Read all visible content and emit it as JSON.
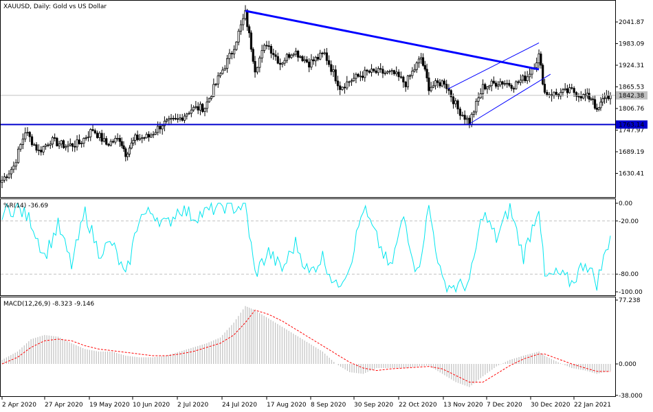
{
  "main_panel": {
    "title": "XAUUSD, Daily:  Gold vs US Dollar",
    "y_ticks": [
      "2041.87",
      "1983.09",
      "1924.31",
      "1865.53",
      "1806.76",
      "1747.97",
      "1689.19",
      "1630.41"
    ],
    "current_price": "1842.38",
    "hline_price": "1763.14"
  },
  "wr_panel": {
    "label": "%R(14) -36.69",
    "y_ticks": [
      "0.00",
      "-20.00",
      "-80.00",
      "-100.00"
    ]
  },
  "macd_panel": {
    "label": "MACD(12,26,9) -8.323 -9.146",
    "y_ticks": [
      "77.238",
      "0.000",
      "-38.000"
    ]
  },
  "x_ticks": [
    "2 Apr 2020",
    "27 Apr 2020",
    "19 May 2020",
    "10 Jun 2020",
    "2 Jul 2020",
    "24 Jul 2020",
    "17 Aug 2020",
    "8 Sep 2020",
    "30 Sep 2020",
    "22 Oct 2020",
    "13 Nov 2020",
    "7 Dec 2020",
    "30 Dec 2020",
    "22 Jan 2021"
  ],
  "colors": {
    "candles": "#000000",
    "trendline": "#0000ff",
    "hline": "#0000cd",
    "channel": "#0000ff",
    "wr": "#00e5ee",
    "macd_hist": "#c0c0c0",
    "macd_signal": "#ff0000",
    "grid": "#c0c0c0",
    "price_box": "#c0c0c0",
    "hline_box": "#0000cd"
  },
  "chart_data": [
    {
      "type": "candlestick",
      "title": "XAUUSD, Daily:  Gold vs US Dollar",
      "ylim": [
        1600,
        2080
      ],
      "close_series": [
        {
          "date": "2020-04-02",
          "close": 1612
        },
        {
          "date": "2020-04-08",
          "close": 1650
        },
        {
          "date": "2020-04-14",
          "close": 1745
        },
        {
          "date": "2020-04-21",
          "close": 1690
        },
        {
          "date": "2020-04-27",
          "close": 1720
        },
        {
          "date": "2020-05-05",
          "close": 1705
        },
        {
          "date": "2020-05-12",
          "close": 1712
        },
        {
          "date": "2020-05-19",
          "close": 1750
        },
        {
          "date": "2020-05-26",
          "close": 1710
        },
        {
          "date": "2020-06-02",
          "close": 1725
        },
        {
          "date": "2020-06-05",
          "close": 1685
        },
        {
          "date": "2020-06-10",
          "close": 1725
        },
        {
          "date": "2020-06-17",
          "close": 1730
        },
        {
          "date": "2020-06-24",
          "close": 1765
        },
        {
          "date": "2020-07-02",
          "close": 1775
        },
        {
          "date": "2020-07-09",
          "close": 1805
        },
        {
          "date": "2020-07-16",
          "close": 1810
        },
        {
          "date": "2020-07-24",
          "close": 1900
        },
        {
          "date": "2020-07-30",
          "close": 1960
        },
        {
          "date": "2020-08-06",
          "close": 2065
        },
        {
          "date": "2020-08-11",
          "close": 1915
        },
        {
          "date": "2020-08-17",
          "close": 1985
        },
        {
          "date": "2020-08-24",
          "close": 1930
        },
        {
          "date": "2020-08-31",
          "close": 1965
        },
        {
          "date": "2020-09-08",
          "close": 1930
        },
        {
          "date": "2020-09-16",
          "close": 1955
        },
        {
          "date": "2020-09-24",
          "close": 1865
        },
        {
          "date": "2020-09-30",
          "close": 1885
        },
        {
          "date": "2020-10-08",
          "close": 1905
        },
        {
          "date": "2020-10-15",
          "close": 1905
        },
        {
          "date": "2020-10-22",
          "close": 1900
        },
        {
          "date": "2020-10-28",
          "close": 1875
        },
        {
          "date": "2020-11-05",
          "close": 1945
        },
        {
          "date": "2020-11-09",
          "close": 1865
        },
        {
          "date": "2020-11-17",
          "close": 1880
        },
        {
          "date": "2020-11-24",
          "close": 1805
        },
        {
          "date": "2020-11-30",
          "close": 1770
        },
        {
          "date": "2020-12-07",
          "close": 1865
        },
        {
          "date": "2020-12-16",
          "close": 1880
        },
        {
          "date": "2020-12-23",
          "close": 1870
        },
        {
          "date": "2020-12-30",
          "close": 1895
        },
        {
          "date": "2021-01-05",
          "close": 1950
        },
        {
          "date": "2021-01-08",
          "close": 1850
        },
        {
          "date": "2021-01-14",
          "close": 1845
        },
        {
          "date": "2021-01-22",
          "close": 1855
        },
        {
          "date": "2021-01-28",
          "close": 1840
        },
        {
          "date": "2021-02-02",
          "close": 1835
        },
        {
          "date": "2021-02-04",
          "close": 1795
        },
        {
          "date": "2021-02-08",
          "close": 1840
        },
        {
          "date": "2021-02-11",
          "close": 1842
        }
      ],
      "annotations": {
        "trendline": [
          {
            "date": "2020-08-06",
            "price": 2072
          },
          {
            "date": "2021-01-05",
            "price": 1913
          }
        ],
        "horizontal_line": 1763.14,
        "channel": [
          {
            "from": {
              "date": "2020-11-19",
              "price": 1860
            },
            "to": {
              "date": "2021-01-05",
              "price": 1985
            }
          },
          {
            "from": {
              "date": "2020-11-30",
              "price": 1765
            },
            "to": {
              "date": "2021-01-11",
              "price": 1900
            }
          }
        ]
      }
    },
    {
      "type": "line",
      "name": "%R(14)",
      "ylim": [
        -100,
        0
      ],
      "x": [
        "2020-04-02",
        "2020-04-10",
        "2020-04-17",
        "2020-04-24",
        "2020-05-01",
        "2020-05-08",
        "2020-05-15",
        "2020-05-22",
        "2020-05-29",
        "2020-06-05",
        "2020-06-12",
        "2020-06-19",
        "2020-06-26",
        "2020-07-03",
        "2020-07-10",
        "2020-07-17",
        "2020-07-24",
        "2020-07-31",
        "2020-08-06",
        "2020-08-11",
        "2020-08-18",
        "2020-08-25",
        "2020-09-01",
        "2020-09-08",
        "2020-09-15",
        "2020-09-22",
        "2020-09-29",
        "2020-10-06",
        "2020-10-13",
        "2020-10-20",
        "2020-10-27",
        "2020-11-03",
        "2020-11-09",
        "2020-11-16",
        "2020-11-23",
        "2020-11-30",
        "2020-12-07",
        "2020-12-14",
        "2020-12-21",
        "2020-12-28",
        "2021-01-05",
        "2021-01-08",
        "2021-01-15",
        "2021-01-22",
        "2021-01-29",
        "2021-02-04",
        "2021-02-11"
      ],
      "values": [
        -10,
        -5,
        -20,
        -60,
        -25,
        -70,
        -10,
        -55,
        -45,
        -85,
        -15,
        -10,
        -25,
        -5,
        -15,
        -10,
        -2,
        -5,
        -2,
        -80,
        -55,
        -75,
        -45,
        -80,
        -60,
        -95,
        -70,
        -5,
        -40,
        -75,
        -15,
        -80,
        -5,
        -90,
        -95,
        -90,
        -10,
        -40,
        -5,
        -60,
        -2,
        -85,
        -80,
        -90,
        -65,
        -90,
        -36.69
      ]
    },
    {
      "type": "bar+line",
      "name": "MACD(12,26,9)",
      "ylim": [
        -38,
        77.238
      ],
      "x": [
        "2020-04-02",
        "2020-04-10",
        "2020-04-17",
        "2020-04-24",
        "2020-05-01",
        "2020-05-08",
        "2020-05-15",
        "2020-05-22",
        "2020-05-29",
        "2020-06-05",
        "2020-06-12",
        "2020-06-19",
        "2020-06-26",
        "2020-07-03",
        "2020-07-10",
        "2020-07-17",
        "2020-07-24",
        "2020-07-31",
        "2020-08-06",
        "2020-08-11",
        "2020-08-18",
        "2020-08-25",
        "2020-09-01",
        "2020-09-08",
        "2020-09-15",
        "2020-09-22",
        "2020-09-29",
        "2020-10-06",
        "2020-10-13",
        "2020-10-20",
        "2020-10-27",
        "2020-11-03",
        "2020-11-09",
        "2020-11-16",
        "2020-11-23",
        "2020-11-30",
        "2020-12-07",
        "2020-12-14",
        "2020-12-21",
        "2020-12-28",
        "2021-01-05",
        "2021-01-08",
        "2021-01-15",
        "2021-01-22",
        "2021-01-29",
        "2021-02-04",
        "2021-02-11"
      ],
      "series": [
        {
          "name": "MACD",
          "values": [
            5,
            15,
            30,
            35,
            33,
            25,
            18,
            15,
            15,
            10,
            8,
            8,
            10,
            15,
            20,
            25,
            32,
            50,
            70,
            65,
            55,
            45,
            35,
            25,
            15,
            0,
            -10,
            -12,
            -5,
            -5,
            -5,
            -3,
            -2,
            -12,
            -22,
            -28,
            -15,
            -3,
            5,
            10,
            15,
            10,
            2,
            -5,
            -8,
            -12,
            -8.323
          ]
        },
        {
          "name": "Signal",
          "values": [
            0,
            8,
            20,
            28,
            30,
            28,
            22,
            18,
            16,
            14,
            12,
            10,
            10,
            12,
            15,
            20,
            25,
            35,
            50,
            65,
            60,
            52,
            42,
            32,
            22,
            12,
            2,
            -5,
            -8,
            -6,
            -5,
            -4,
            -3,
            -6,
            -14,
            -22,
            -22,
            -12,
            -2,
            6,
            12,
            12,
            6,
            0,
            -5,
            -9,
            -9.146
          ]
        }
      ]
    }
  ]
}
